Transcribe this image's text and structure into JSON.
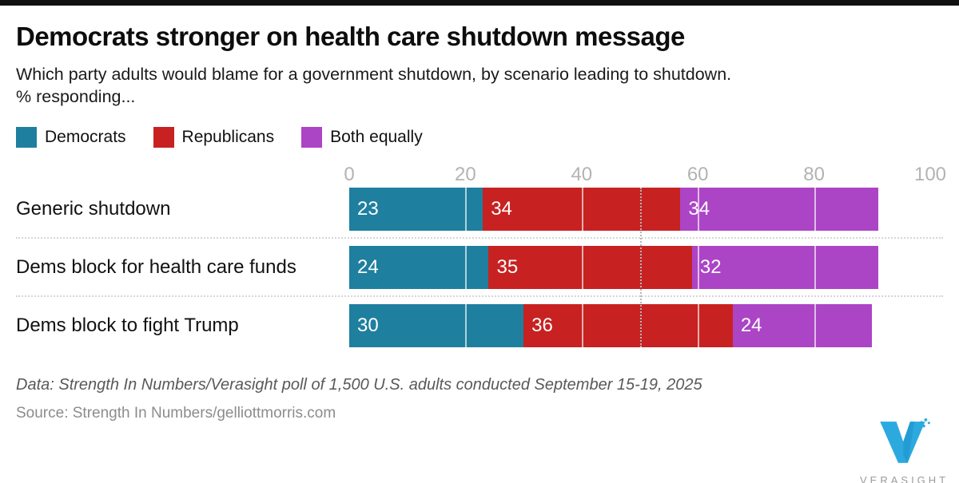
{
  "header": {
    "title": "Democrats stronger on health care shutdown message",
    "subtitle": "Which party adults would blame for a government shutdown, by scenario leading to shutdown.\n% responding..."
  },
  "legend": [
    {
      "label": "Democrats",
      "color": "#1F7F9E"
    },
    {
      "label": "Republicans",
      "color": "#C72221"
    },
    {
      "label": "Both equally",
      "color": "#AC44C6"
    }
  ],
  "chart_data": {
    "type": "bar",
    "orientation": "horizontal",
    "stacked": true,
    "categories": [
      "Generic shutdown",
      "Dems block for health care funds",
      "Dems block to fight Trump"
    ],
    "series": [
      {
        "name": "Democrats",
        "color": "#1F7F9E",
        "values": [
          23,
          24,
          30
        ]
      },
      {
        "name": "Republicans",
        "color": "#C72221",
        "values": [
          34,
          35,
          36
        ]
      },
      {
        "name": "Both equally",
        "color": "#AC44C6",
        "values": [
          34,
          32,
          24
        ]
      }
    ],
    "x_ticks": [
      0,
      20,
      40,
      60,
      80,
      100
    ],
    "xlim": [
      0,
      100
    ],
    "reference_line_x": 50,
    "grid": "white tick lines over bars, dotted separators between rows",
    "legend_position": "top",
    "value_labels": "inside-left, white"
  },
  "footer": {
    "data_note": "Data: Strength In Numbers/Verasight poll of 1,500 U.S. adults conducted September 15-19, 2025",
    "source": "Source: Strength In Numbers/gelliottmorris.com",
    "logo_text": "VERASIGHT",
    "logo_color": "#2CAADF"
  }
}
